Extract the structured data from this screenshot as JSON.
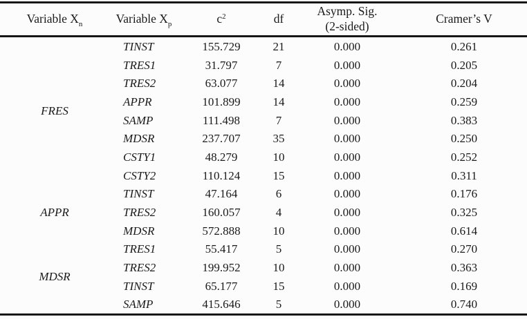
{
  "table": {
    "headers": [
      {
        "text": "Variable X",
        "sub": "n"
      },
      {
        "text": "Variable X",
        "sub": "p"
      },
      {
        "text": "c",
        "sup": "2"
      },
      {
        "text": "df"
      },
      {
        "text": "Asymp. Sig.",
        "line2": "(2-sided)"
      },
      {
        "text": "Cramer’s V"
      }
    ],
    "groups": [
      {
        "label": "FRES",
        "rows": [
          {
            "xp": "TINST",
            "c2": "155.729",
            "df": "21",
            "sig": "0.000",
            "v": "0.261"
          },
          {
            "xp": "TRES1",
            "c2": "31.797",
            "df": "7",
            "sig": "0.000",
            "v": "0.205"
          },
          {
            "xp": "TRES2",
            "c2": "63.077",
            "df": "14",
            "sig": "0.000",
            "v": "0.204"
          },
          {
            "xp": "APPR",
            "c2": "101.899",
            "df": "14",
            "sig": "0.000",
            "v": "0.259"
          },
          {
            "xp": "SAMP",
            "c2": "111.498",
            "df": "7",
            "sig": "0.000",
            "v": "0.383"
          },
          {
            "xp": "MDSR",
            "c2": "237.707",
            "df": "35",
            "sig": "0.000",
            "v": "0.250"
          },
          {
            "xp": "CSTY1",
            "c2": "48.279",
            "df": "10",
            "sig": "0.000",
            "v": "0.252"
          },
          {
            "xp": "CSTY2",
            "c2": "110.124",
            "df": "15",
            "sig": "0.000",
            "v": "0.311"
          }
        ]
      },
      {
        "label": "APPR",
        "rows": [
          {
            "xp": "TINST",
            "c2": "47.164",
            "df": "6",
            "sig": "0.000",
            "v": "0.176"
          },
          {
            "xp": "TRES2",
            "c2": "160.057",
            "df": "4",
            "sig": "0.000",
            "v": "0.325"
          },
          {
            "xp": "MDSR",
            "c2": "572.888",
            "df": "10",
            "sig": "0.000",
            "v": "0.614"
          }
        ]
      },
      {
        "label": "MDSR",
        "rows": [
          {
            "xp": "TRES1",
            "c2": "55.417",
            "df": "5",
            "sig": "0.000",
            "v": "0.270"
          },
          {
            "xp": "TRES2",
            "c2": "199.952",
            "df": "10",
            "sig": "0.000",
            "v": "0.363"
          },
          {
            "xp": "TINST",
            "c2": "65.177",
            "df": "15",
            "sig": "0.000",
            "v": "0.169"
          },
          {
            "xp": "SAMP",
            "c2": "415.646",
            "df": "5",
            "sig": "0.000",
            "v": "0.740"
          }
        ]
      }
    ]
  },
  "colors": {
    "rule": "#161616",
    "text": "#1a1a1a",
    "background": "#fcfcfc"
  }
}
